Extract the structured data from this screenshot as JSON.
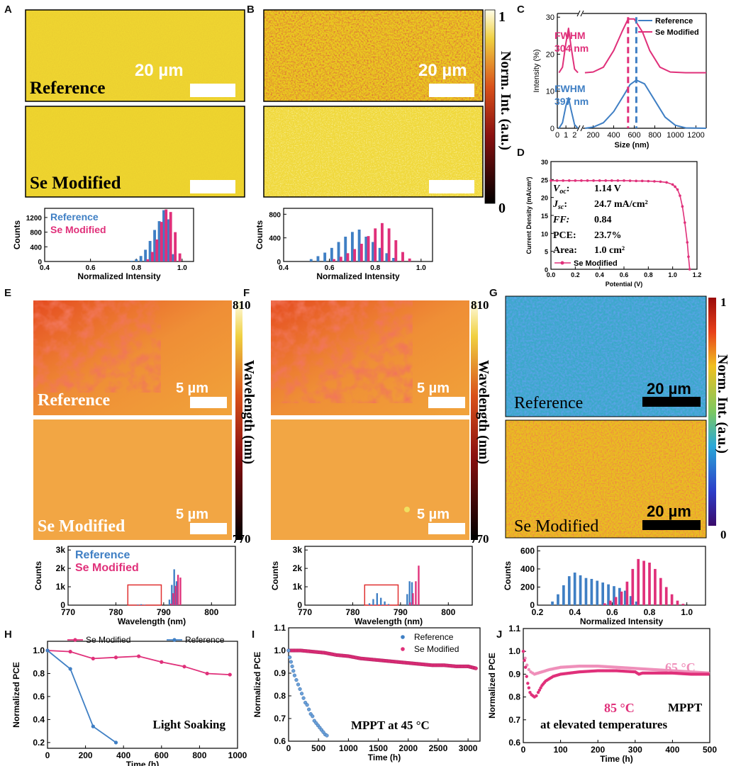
{
  "colors": {
    "reference": "#3f7fc4",
    "modified": "#e0307a",
    "modified_light": "#ef8fba"
  },
  "panels": {
    "A": {
      "letter": "A",
      "scale": "20 µm",
      "top_label": "Reference",
      "bottom_label": "Se Modified"
    },
    "B": {
      "letter": "B",
      "scale": "20 µm",
      "colorbar_label": "Norm. Int. (a.u.)",
      "cb_max": "1",
      "cb_min": "0"
    },
    "C": {
      "letter": "C",
      "fwhm_mod": [
        "FWHM",
        "304 nm"
      ],
      "fwhm_ref": [
        "FWHM",
        "397 nm"
      ]
    },
    "D": {
      "letter": "D",
      "voc": "1.14 V",
      "jsc": "24.7 mA/cm²",
      "ff": "0.84",
      "pce": "23.7%",
      "area": "1.0 cm²",
      "labels": {
        "voc": "V",
        "voc_sub": "oc",
        "jsc": "J",
        "jsc_sub": "sc",
        "ff": "FF:",
        "pce": "PCE:",
        "area": "Area:"
      }
    },
    "E": {
      "letter": "E",
      "scale": "5 µm",
      "top_label": "Reference",
      "bottom_label": "Se Modified",
      "colorbar_label": "Wavelength (nm)",
      "cb_max": "810",
      "cb_min": "770"
    },
    "F": {
      "letter": "F",
      "scale": "5 µm",
      "colorbar_label": "Wavelength (nm)",
      "cb_max": "810",
      "cb_min": "770"
    },
    "G": {
      "letter": "G",
      "scale": "20 µm",
      "top_label": "Reference",
      "bottom_label": "Se Modified",
      "colorbar_label": "Norm. Int. (a.u.)",
      "cb_max": "1",
      "cb_min": "0"
    },
    "H": {
      "letter": "H"
    },
    "I": {
      "letter": "I"
    },
    "J": {
      "letter": "J"
    }
  },
  "chart_data": [
    {
      "id": "A_hist",
      "type": "bar",
      "xlabel": "Normalized Intensity",
      "ylabel": "Counts",
      "xlim": [
        0.4,
        1.05
      ],
      "ylim": [
        0,
        1450
      ],
      "xticks": [
        0.4,
        0.6,
        0.8,
        1.0
      ],
      "yticks": [
        0,
        400,
        800,
        1200
      ],
      "legend": [
        "Reference",
        "Se Modified"
      ],
      "bar_width": 0.012,
      "series": [
        {
          "name": "Reference",
          "x": [
            0.78,
            0.8,
            0.82,
            0.84,
            0.86,
            0.88,
            0.9,
            0.92,
            0.94,
            0.96
          ],
          "values": [
            20,
            60,
            150,
            320,
            560,
            860,
            1100,
            1400,
            1150,
            200
          ]
        },
        {
          "name": "Se Modified",
          "x": [
            0.85,
            0.87,
            0.89,
            0.91,
            0.93,
            0.95,
            0.97,
            0.99
          ],
          "values": [
            60,
            260,
            600,
            1080,
            1420,
            1350,
            800,
            220
          ]
        }
      ]
    },
    {
      "id": "B_hist",
      "type": "bar",
      "xlabel": "Normalized Intensity",
      "ylabel": "Counts",
      "xlim": [
        0.4,
        1.05
      ],
      "ylim": [
        0,
        900
      ],
      "xticks": [
        0.4,
        0.6,
        0.8,
        1.0
      ],
      "yticks": [
        0,
        400,
        800
      ],
      "bar_width": 0.012,
      "series": [
        {
          "name": "Reference",
          "x": [
            0.52,
            0.55,
            0.58,
            0.61,
            0.64,
            0.67,
            0.7,
            0.73,
            0.76,
            0.79,
            0.82,
            0.85,
            0.88
          ],
          "values": [
            40,
            90,
            150,
            230,
            330,
            420,
            500,
            540,
            420,
            330,
            230,
            140,
            60
          ]
        },
        {
          "name": "Se Modified",
          "x": [
            0.62,
            0.65,
            0.68,
            0.71,
            0.74,
            0.77,
            0.8,
            0.83,
            0.86,
            0.89,
            0.92,
            0.95
          ],
          "values": [
            40,
            80,
            140,
            210,
            300,
            430,
            560,
            650,
            560,
            360,
            160,
            50
          ]
        }
      ]
    },
    {
      "id": "C",
      "type": "line",
      "xlabel": "Size (nm)",
      "ylabel": "Intensity (%)",
      "xticks": [
        0,
        1,
        2,
        200,
        400,
        600,
        800,
        1000,
        1200
      ],
      "yticks": [
        0,
        10,
        20,
        30
      ],
      "legend": [
        "Reference",
        "Se Modified"
      ],
      "series": [
        {
          "name": "Reference",
          "x_small": [
            0.2,
            0.6,
            1.0,
            1.3,
            1.6,
            2.0,
            2.4
          ],
          "y_small": [
            0,
            1.5,
            6,
            8.2,
            5,
            1,
            0
          ],
          "x": [
            120,
            200,
            300,
            400,
            500,
            560,
            620,
            700,
            800,
            900,
            1000,
            1100,
            1300
          ],
          "y": [
            0,
            0.3,
            1.5,
            4.5,
            9,
            11.8,
            13,
            12,
            7.5,
            3,
            0.8,
            0.1,
            0
          ]
        },
        {
          "name": "Se Modified",
          "x_small": [
            0.2,
            0.6,
            1.0,
            1.3,
            1.6,
            2.0,
            2.4
          ],
          "y_small": [
            15,
            16.5,
            23,
            27,
            22,
            16,
            15
          ],
          "x": [
            120,
            200,
            300,
            400,
            480,
            540,
            600,
            680,
            750,
            850,
            950,
            1100,
            1300
          ],
          "y": [
            15,
            15.2,
            16.5,
            21,
            26,
            29.5,
            29.5,
            26,
            21,
            16.5,
            15.2,
            15,
            15
          ]
        }
      ],
      "markers_nm": [
        540,
        620
      ]
    },
    {
      "id": "D",
      "type": "line",
      "xlabel": "Potential (V)",
      "ylabel": "Current Density (mA/cm²)",
      "xlim": [
        0,
        1.2
      ],
      "ylim": [
        0,
        30
      ],
      "xticks": [
        0.0,
        0.2,
        0.4,
        0.6,
        0.8,
        1.0,
        1.2
      ],
      "yticks": [
        0,
        5,
        10,
        15,
        20,
        25,
        30
      ],
      "legend": [
        "Se Modified"
      ],
      "series": [
        {
          "name": "Se Modified",
          "x": [
            0,
            0.05,
            0.1,
            0.15,
            0.2,
            0.25,
            0.3,
            0.35,
            0.4,
            0.45,
            0.5,
            0.55,
            0.6,
            0.65,
            0.7,
            0.75,
            0.8,
            0.85,
            0.9,
            0.95,
            1.0,
            1.02,
            1.04,
            1.06,
            1.08,
            1.1,
            1.12,
            1.13,
            1.14
          ],
          "y": [
            24.7,
            24.7,
            24.7,
            24.7,
            24.7,
            24.7,
            24.7,
            24.7,
            24.7,
            24.7,
            24.7,
            24.7,
            24.7,
            24.65,
            24.6,
            24.6,
            24.55,
            24.5,
            24.4,
            24.2,
            23.6,
            23.0,
            22.2,
            20.5,
            17.5,
            13,
            7.5,
            3.5,
            0
          ]
        }
      ]
    },
    {
      "id": "E_hist",
      "type": "bar",
      "xlabel": "Wavelength (nm)",
      "ylabel": "Counts",
      "xlim": [
        770,
        805
      ],
      "ylim": [
        0,
        3200
      ],
      "xticks": [
        770,
        780,
        790,
        800
      ],
      "ytick_labels": [
        "0",
        "1k",
        "2k",
        "3k"
      ],
      "yticks": [
        0,
        1000,
        2000,
        3000
      ],
      "legend": [
        "Reference",
        "Se Modified"
      ],
      "bar_width": 0.35,
      "highlight": [
        782.5,
        789.5
      ],
      "series": [
        {
          "name": "Reference",
          "x": [
            784.6,
            785.3,
            786.0,
            791.2,
            791.7,
            792.2,
            792.7
          ],
          "values": [
            30,
            50,
            20,
            300,
            1100,
            1950,
            1300
          ]
        },
        {
          "name": "Se Modified",
          "x": [
            791.5,
            792.0,
            792.5,
            793.0,
            793.5
          ],
          "values": [
            80,
            650,
            1050,
            1650,
            1500
          ]
        }
      ]
    },
    {
      "id": "F_hist",
      "type": "bar",
      "xlabel": "Wavelength (nm)",
      "ylabel": "Counts",
      "xlim": [
        770,
        805
      ],
      "ylim": [
        0,
        3200
      ],
      "xticks": [
        770,
        780,
        790,
        800
      ],
      "ytick_labels": [
        "0",
        "1k",
        "2k",
        "3k"
      ],
      "yticks": [
        0,
        1000,
        2000,
        3000
      ],
      "bar_width": 0.35,
      "highlight": [
        782.5,
        789.5
      ],
      "series": [
        {
          "name": "Reference",
          "x": [
            783.5,
            784.3,
            785.1,
            785.9,
            786.7,
            787.5,
            791.4,
            791.9,
            792.4
          ],
          "values": [
            100,
            330,
            650,
            400,
            200,
            60,
            600,
            1300,
            1250
          ]
        },
        {
          "name": "Se Modified",
          "x": [
            792.0,
            792.6,
            793.2,
            793.8
          ],
          "values": [
            150,
            650,
            1300,
            2150
          ]
        }
      ]
    },
    {
      "id": "G_hist",
      "type": "bar",
      "xlabel": "Normalized Intensity",
      "ylabel": "Counts",
      "xlim": [
        0.2,
        1.1
      ],
      "ylim": [
        0,
        650
      ],
      "xticks": [
        0.2,
        0.4,
        0.6,
        0.8,
        1.0
      ],
      "yticks": [
        0,
        200,
        400,
        600
      ],
      "bar_width": 0.014,
      "series": [
        {
          "name": "Reference",
          "x": [
            0.28,
            0.31,
            0.34,
            0.37,
            0.4,
            0.43,
            0.46,
            0.49,
            0.52,
            0.55,
            0.58,
            0.61,
            0.64,
            0.67,
            0.7,
            0.73
          ],
          "values": [
            40,
            120,
            220,
            320,
            360,
            330,
            300,
            290,
            270,
            250,
            230,
            210,
            190,
            160,
            100,
            40
          ]
        },
        {
          "name": "Se Modified",
          "x": [
            0.56,
            0.59,
            0.62,
            0.65,
            0.68,
            0.71,
            0.74,
            0.77,
            0.8,
            0.83,
            0.86,
            0.89,
            0.92,
            0.95,
            0.98
          ],
          "values": [
            20,
            50,
            90,
            150,
            260,
            400,
            510,
            490,
            470,
            400,
            300,
            200,
            120,
            50,
            15
          ]
        }
      ]
    },
    {
      "id": "H",
      "type": "line",
      "xlabel": "Time (h)",
      "ylabel": "Normalized PCE",
      "annotation": "Light Soaking",
      "xlim": [
        0,
        1000
      ],
      "ylim": [
        0.15,
        1.08
      ],
      "xticks": [
        0,
        200,
        400,
        600,
        800,
        1000
      ],
      "yticks": [
        0.2,
        0.4,
        0.6,
        0.8,
        1.0
      ],
      "legend": [
        "Se Modified",
        "Reference"
      ],
      "series": [
        {
          "name": "Se Modified",
          "x": [
            0,
            120,
            240,
            360,
            480,
            600,
            720,
            840,
            960
          ],
          "y": [
            1.0,
            0.99,
            0.93,
            0.94,
            0.95,
            0.9,
            0.86,
            0.8,
            0.79
          ]
        },
        {
          "name": "Reference",
          "x": [
            0,
            120,
            240,
            360
          ],
          "y": [
            1.0,
            0.84,
            0.34,
            0.2
          ]
        }
      ]
    },
    {
      "id": "I",
      "type": "scatter",
      "xlabel": "Time (h)",
      "ylabel": "Normalized PCE",
      "annotation": "MPPT at 45 °C",
      "xlim": [
        0,
        3200
      ],
      "ylim": [
        0.6,
        1.1
      ],
      "xticks": [
        0,
        500,
        1000,
        1500,
        2000,
        2500,
        3000
      ],
      "yticks": [
        0.6,
        0.7,
        0.8,
        0.9,
        1.0,
        1.1
      ],
      "legend": [
        "Reference",
        "Se Modified"
      ],
      "series": [
        {
          "name": "Reference",
          "x": [
            0,
            20,
            40,
            60,
            80,
            100,
            130,
            160,
            190,
            220,
            250,
            280,
            310,
            340,
            370,
            400,
            430,
            460,
            490,
            520,
            550,
            580,
            610,
            640
          ],
          "y": [
            1.0,
            0.97,
            0.95,
            0.93,
            0.91,
            0.89,
            0.87,
            0.85,
            0.83,
            0.81,
            0.79,
            0.77,
            0.76,
            0.74,
            0.72,
            0.71,
            0.69,
            0.68,
            0.67,
            0.66,
            0.65,
            0.64,
            0.63,
            0.625
          ]
        },
        {
          "name": "Se Modified",
          "x": [
            0,
            200,
            400,
            600,
            800,
            1000,
            1200,
            1400,
            1600,
            1800,
            2000,
            2200,
            2400,
            2600,
            2800,
            3000,
            3150
          ],
          "y": [
            1.0,
            1.0,
            0.995,
            0.99,
            0.98,
            0.975,
            0.965,
            0.96,
            0.955,
            0.95,
            0.945,
            0.94,
            0.935,
            0.935,
            0.93,
            0.93,
            0.92
          ]
        }
      ]
    },
    {
      "id": "J",
      "type": "scatter",
      "xlabel": "Time (h)",
      "ylabel": "Normalized PCE",
      "annotation": [
        "MPPT",
        "at elevated temperatures"
      ],
      "xlim": [
        0,
        500
      ],
      "ylim": [
        0.6,
        1.1
      ],
      "xticks": [
        0,
        100,
        200,
        300,
        400,
        500
      ],
      "yticks": [
        0.6,
        0.7,
        0.8,
        0.9,
        1.0,
        1.1
      ],
      "legend_text": [
        "65 °C",
        "85 °C"
      ],
      "series": [
        {
          "name": "65 °C",
          "x": [
            0,
            5,
            10,
            15,
            20,
            25,
            30,
            40,
            50,
            70,
            100,
            150,
            200,
            250,
            300,
            350,
            400,
            450,
            500
          ],
          "y": [
            1.0,
            0.97,
            0.94,
            0.92,
            0.91,
            0.905,
            0.9,
            0.905,
            0.91,
            0.92,
            0.93,
            0.935,
            0.935,
            0.93,
            0.925,
            0.92,
            0.915,
            0.91,
            0.905
          ]
        },
        {
          "name": "85 °C",
          "x": [
            0,
            3,
            6,
            9,
            12,
            15,
            18,
            22,
            26,
            30,
            35,
            40,
            50,
            60,
            80,
            100,
            150,
            200,
            250,
            300,
            310,
            320,
            350,
            400,
            450,
            500
          ],
          "y": [
            1.0,
            0.96,
            0.93,
            0.89,
            0.86,
            0.84,
            0.82,
            0.81,
            0.805,
            0.8,
            0.805,
            0.82,
            0.85,
            0.87,
            0.89,
            0.9,
            0.91,
            0.915,
            0.915,
            0.91,
            0.9,
            0.905,
            0.905,
            0.905,
            0.9,
            0.9
          ]
        }
      ]
    }
  ]
}
